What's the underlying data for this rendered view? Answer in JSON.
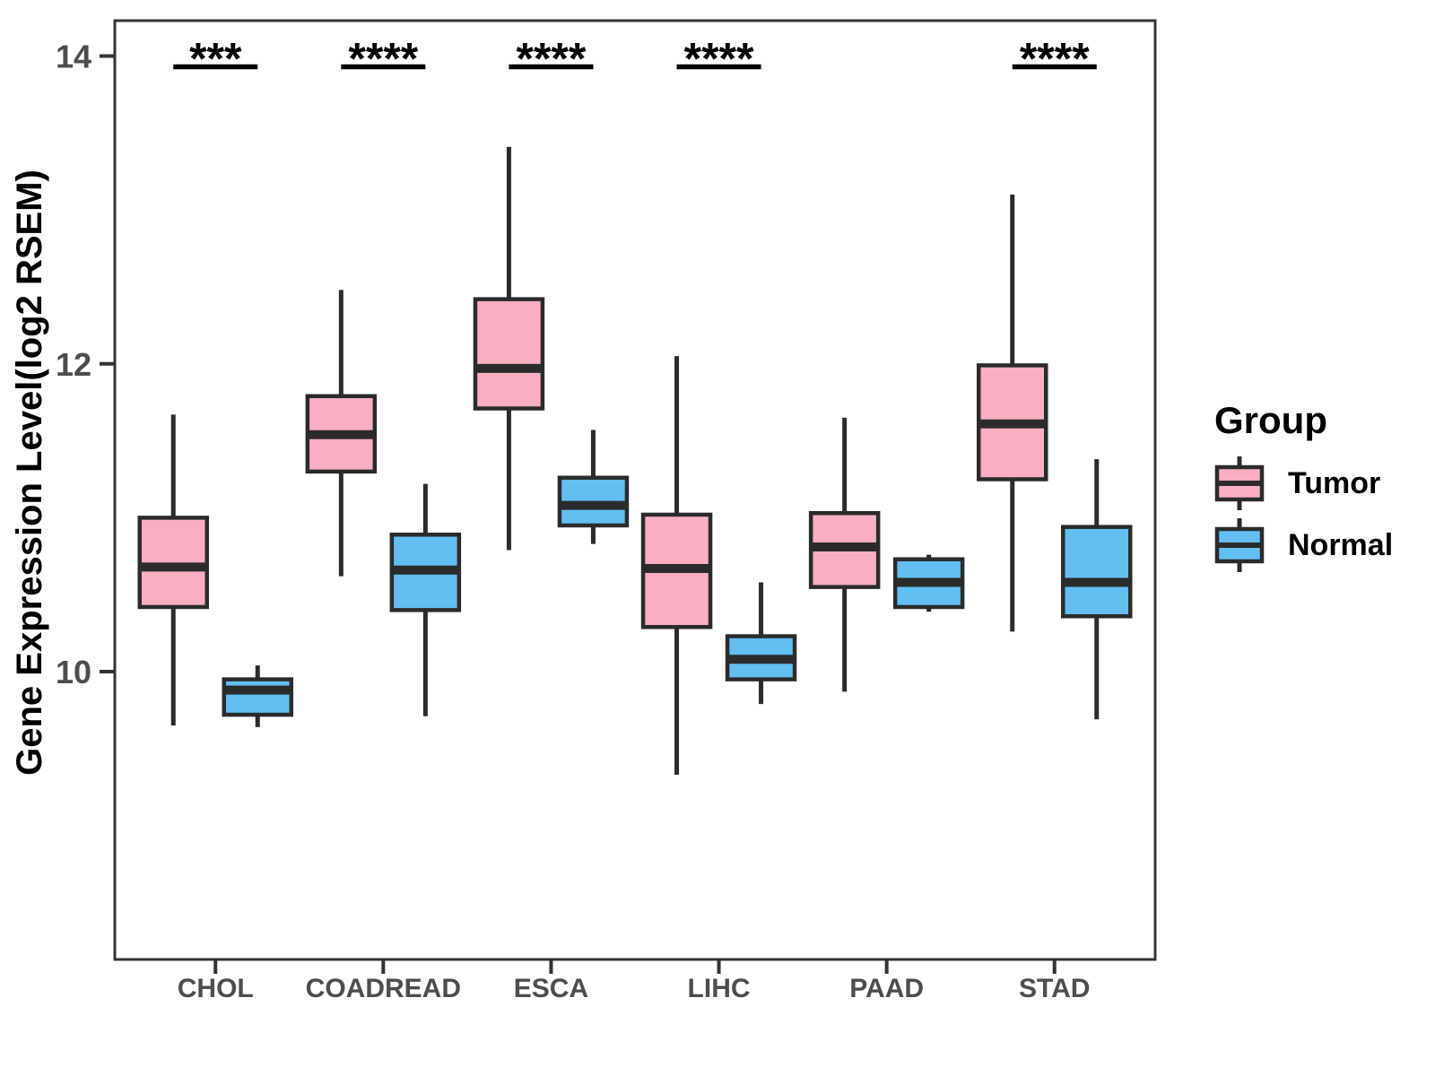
{
  "page": {
    "background": "#FFFFFF"
  },
  "chart_data": {
    "type": "boxplot",
    "title": "",
    "xlabel": "",
    "ylabel": "Gene Expression Level(log2 RSEM)",
    "ylim": [
      8.13,
      14.23
    ],
    "yticks": [
      14,
      12,
      10
    ],
    "grid": false,
    "categories": [
      "CHOL",
      "COADREAD",
      "ESCA",
      "LIHC",
      "PAAD",
      "STAD"
    ],
    "series": [
      {
        "name": "Tumor",
        "color": "#F9AFC1",
        "boxes": [
          {
            "low": 9.65,
            "q1": 10.42,
            "median": 10.68,
            "q3": 11.0,
            "high": 11.67
          },
          {
            "low": 10.62,
            "q1": 11.3,
            "median": 11.54,
            "q3": 11.79,
            "high": 12.48
          },
          {
            "low": 10.79,
            "q1": 11.71,
            "median": 11.97,
            "q3": 12.42,
            "high": 13.41
          },
          {
            "low": 9.33,
            "q1": 10.29,
            "median": 10.67,
            "q3": 11.02,
            "high": 12.05
          },
          {
            "low": 9.87,
            "q1": 10.55,
            "median": 10.81,
            "q3": 11.03,
            "high": 11.65
          },
          {
            "low": 10.26,
            "q1": 11.25,
            "median": 11.61,
            "q3": 11.99,
            "high": 13.1
          }
        ]
      },
      {
        "name": "Normal",
        "color": "#63BEF2",
        "boxes": [
          {
            "low": 9.64,
            "q1": 9.72,
            "median": 9.88,
            "q3": 9.95,
            "high": 10.04
          },
          {
            "low": 9.71,
            "q1": 10.4,
            "median": 10.66,
            "q3": 10.89,
            "high": 11.22
          },
          {
            "low": 10.83,
            "q1": 10.95,
            "median": 11.08,
            "q3": 11.26,
            "high": 11.57
          },
          {
            "low": 9.79,
            "q1": 9.95,
            "median": 10.08,
            "q3": 10.23,
            "high": 10.58
          },
          {
            "low": 10.39,
            "q1": 10.42,
            "median": 10.58,
            "q3": 10.73,
            "high": 10.76
          },
          {
            "low": 9.69,
            "q1": 10.36,
            "median": 10.58,
            "q3": 10.94,
            "high": 11.38
          }
        ]
      }
    ],
    "significance": [
      {
        "category": "CHOL",
        "label": "***"
      },
      {
        "category": "COADREAD",
        "label": "****"
      },
      {
        "category": "ESCA",
        "label": "****"
      },
      {
        "category": "LIHC",
        "label": "****"
      },
      {
        "category": "STAD",
        "label": "****"
      }
    ],
    "legend": {
      "title": "Group",
      "position": "right"
    },
    "colors": {
      "box_border": "#2B2B2B",
      "axis": "#333333",
      "tick_label": "#4D4D4D",
      "text": "#000000",
      "significance_value": 13.93
    }
  }
}
